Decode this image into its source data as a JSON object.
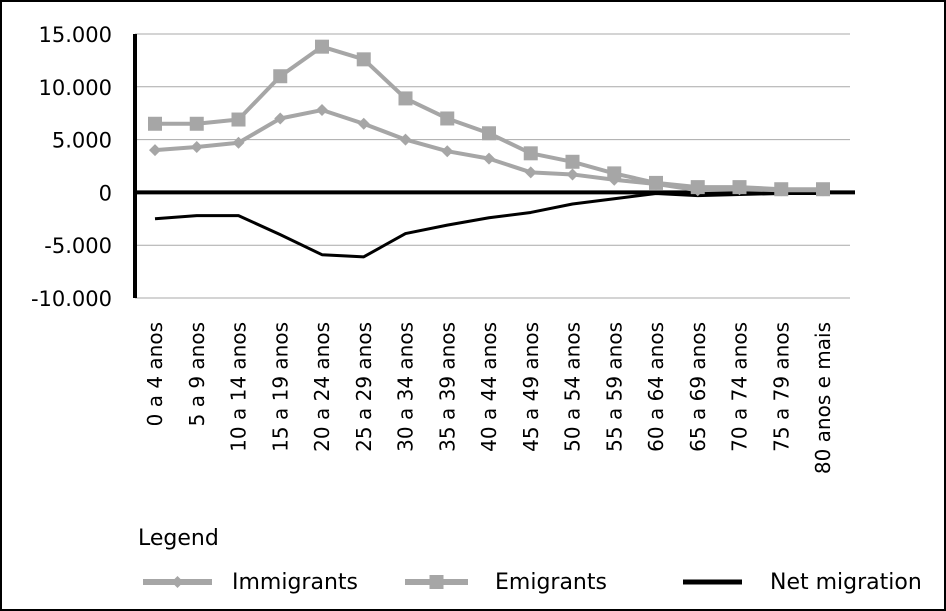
{
  "chart_data": {
    "type": "line",
    "categories": [
      "0 a 4 anos",
      "5 a 9 anos",
      "10 a 14 anos",
      "15 a 19 anos",
      "20 a 24 anos",
      "25 a 29 anos",
      "30 a 34 anos",
      "35 a 39 anos",
      "40 a 44 anos",
      "45 a 49 anos",
      "50 a 54 anos",
      "55 a 59 anos",
      "60 a 64 anos",
      "65 a 69 anos",
      "70 a 74 anos",
      "75 a 79 anos",
      "80 anos e mais"
    ],
    "y_ticks": [
      "15.000",
      "10.000",
      "5.000",
      "0",
      "-5.000",
      "-10.000"
    ],
    "ylim": [
      -10000,
      15000
    ],
    "grid": true,
    "legend_title": "Legend",
    "legend_position": "bottom",
    "series": [
      {
        "name": "Immigrants",
        "color": "#a6a6a6",
        "marker": "diamond",
        "values": [
          4000,
          4300,
          4700,
          7000,
          7800,
          6500,
          5000,
          3900,
          3200,
          1900,
          1700,
          1200,
          800,
          200,
          300,
          200,
          200
        ]
      },
      {
        "name": "Emigrants",
        "color": "#a6a6a6",
        "marker": "square",
        "values": [
          6500,
          6500,
          6900,
          11000,
          13800,
          12600,
          8900,
          7000,
          5600,
          3700,
          2900,
          1800,
          900,
          500,
          500,
          300,
          300
        ]
      },
      {
        "name": "Net migration",
        "color": "#000000",
        "marker": "none",
        "values": [
          -2500,
          -2200,
          -2200,
          -4000,
          -5900,
          -6100,
          -3900,
          -3100,
          -2400,
          -1900,
          -1100,
          -600,
          -100,
          -300,
          -200,
          -100,
          -100
        ]
      }
    ]
  }
}
